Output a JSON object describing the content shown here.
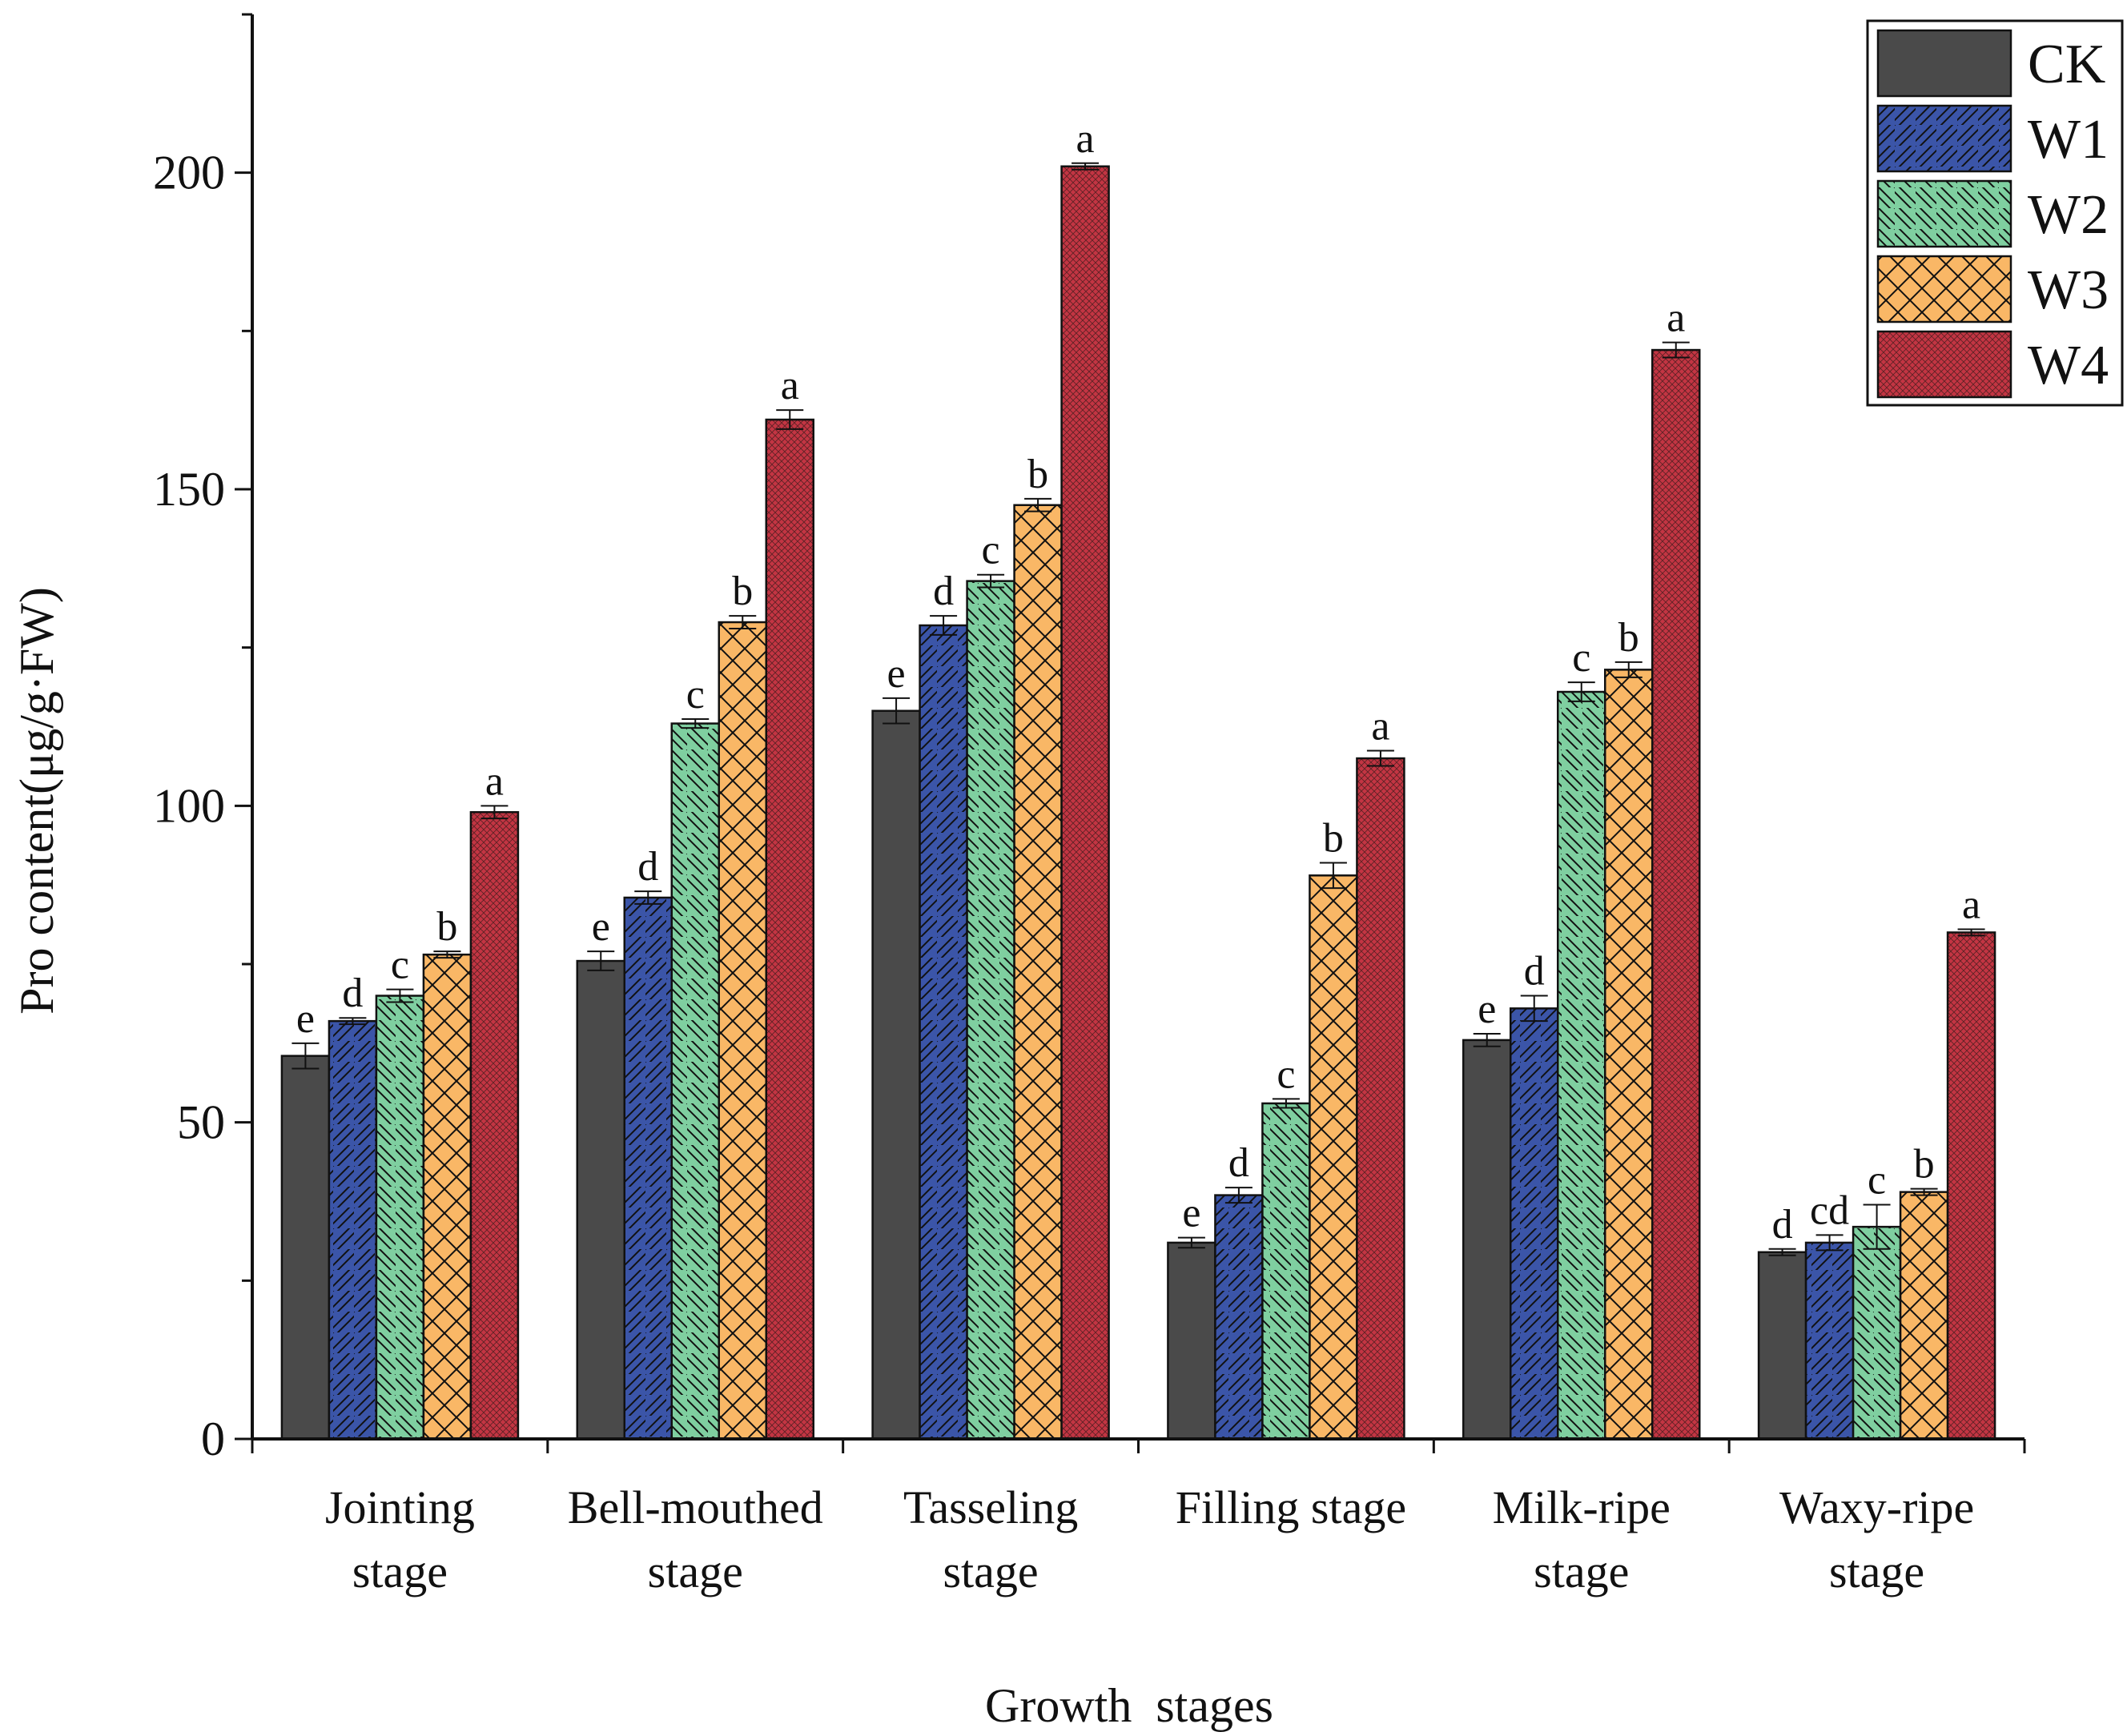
{
  "chart_data": {
    "type": "bar",
    "title": "",
    "xlabel": "Growth  stages",
    "ylabel": "Pro content(μg/g·FW)",
    "ylim": [
      0,
      225
    ],
    "yticks": [
      0,
      50,
      100,
      150,
      200
    ],
    "minor_tick_step": 25,
    "grid": false,
    "legend_position": "top-right",
    "categories": [
      [
        "Jointing",
        "stage"
      ],
      [
        "Bell-mouthed",
        "stage"
      ],
      [
        "Tasseling",
        "stage"
      ],
      [
        "Filling stage"
      ],
      [
        "Milk-ripe",
        "stage"
      ],
      [
        "Waxy-ripe",
        "stage"
      ]
    ],
    "series": [
      {
        "name": "CK",
        "color": "#4a4a4a",
        "pattern": "solid",
        "values": [
          60.5,
          75.5,
          115,
          31,
          63,
          29.5
        ],
        "errors": [
          2,
          1.5,
          2,
          0.8,
          1,
          0.5
        ],
        "letters": [
          "e",
          "e",
          "e",
          "e",
          "e",
          "d"
        ]
      },
      {
        "name": "W1",
        "color": "#3b55a8",
        "pattern": "forward-diagonal",
        "values": [
          66,
          85.5,
          128.5,
          38.5,
          68,
          31
        ],
        "errors": [
          0.5,
          1,
          1.5,
          1.2,
          2,
          1.2
        ],
        "letters": [
          "d",
          "d",
          "d",
          "d",
          "d",
          "cd"
        ]
      },
      {
        "name": "W2",
        "color": "#7fcfa0",
        "pattern": "backward-diagonal",
        "values": [
          70,
          113,
          135.5,
          53,
          118,
          33.5
        ],
        "errors": [
          1,
          0.7,
          1,
          0.7,
          1.5,
          3.5
        ],
        "letters": [
          "c",
          "c",
          "c",
          "c",
          "c",
          "c"
        ]
      },
      {
        "name": "W3",
        "color": "#f9b766",
        "pattern": "cross-hatch",
        "values": [
          76.5,
          129,
          147.5,
          89,
          121.5,
          39
        ],
        "errors": [
          0.5,
          1,
          1,
          2,
          1.2,
          0.5
        ],
        "letters": [
          "b",
          "b",
          "b",
          "b",
          "b",
          "b"
        ]
      },
      {
        "name": "W4",
        "color": "#c33543",
        "pattern": "fine-mesh",
        "values": [
          99,
          161,
          201,
          107.5,
          172,
          80
        ],
        "errors": [
          1,
          1.5,
          0.5,
          1.2,
          1.2,
          0.5
        ],
        "letters": [
          "a",
          "a",
          "a",
          "a",
          "a",
          "a"
        ]
      }
    ]
  }
}
